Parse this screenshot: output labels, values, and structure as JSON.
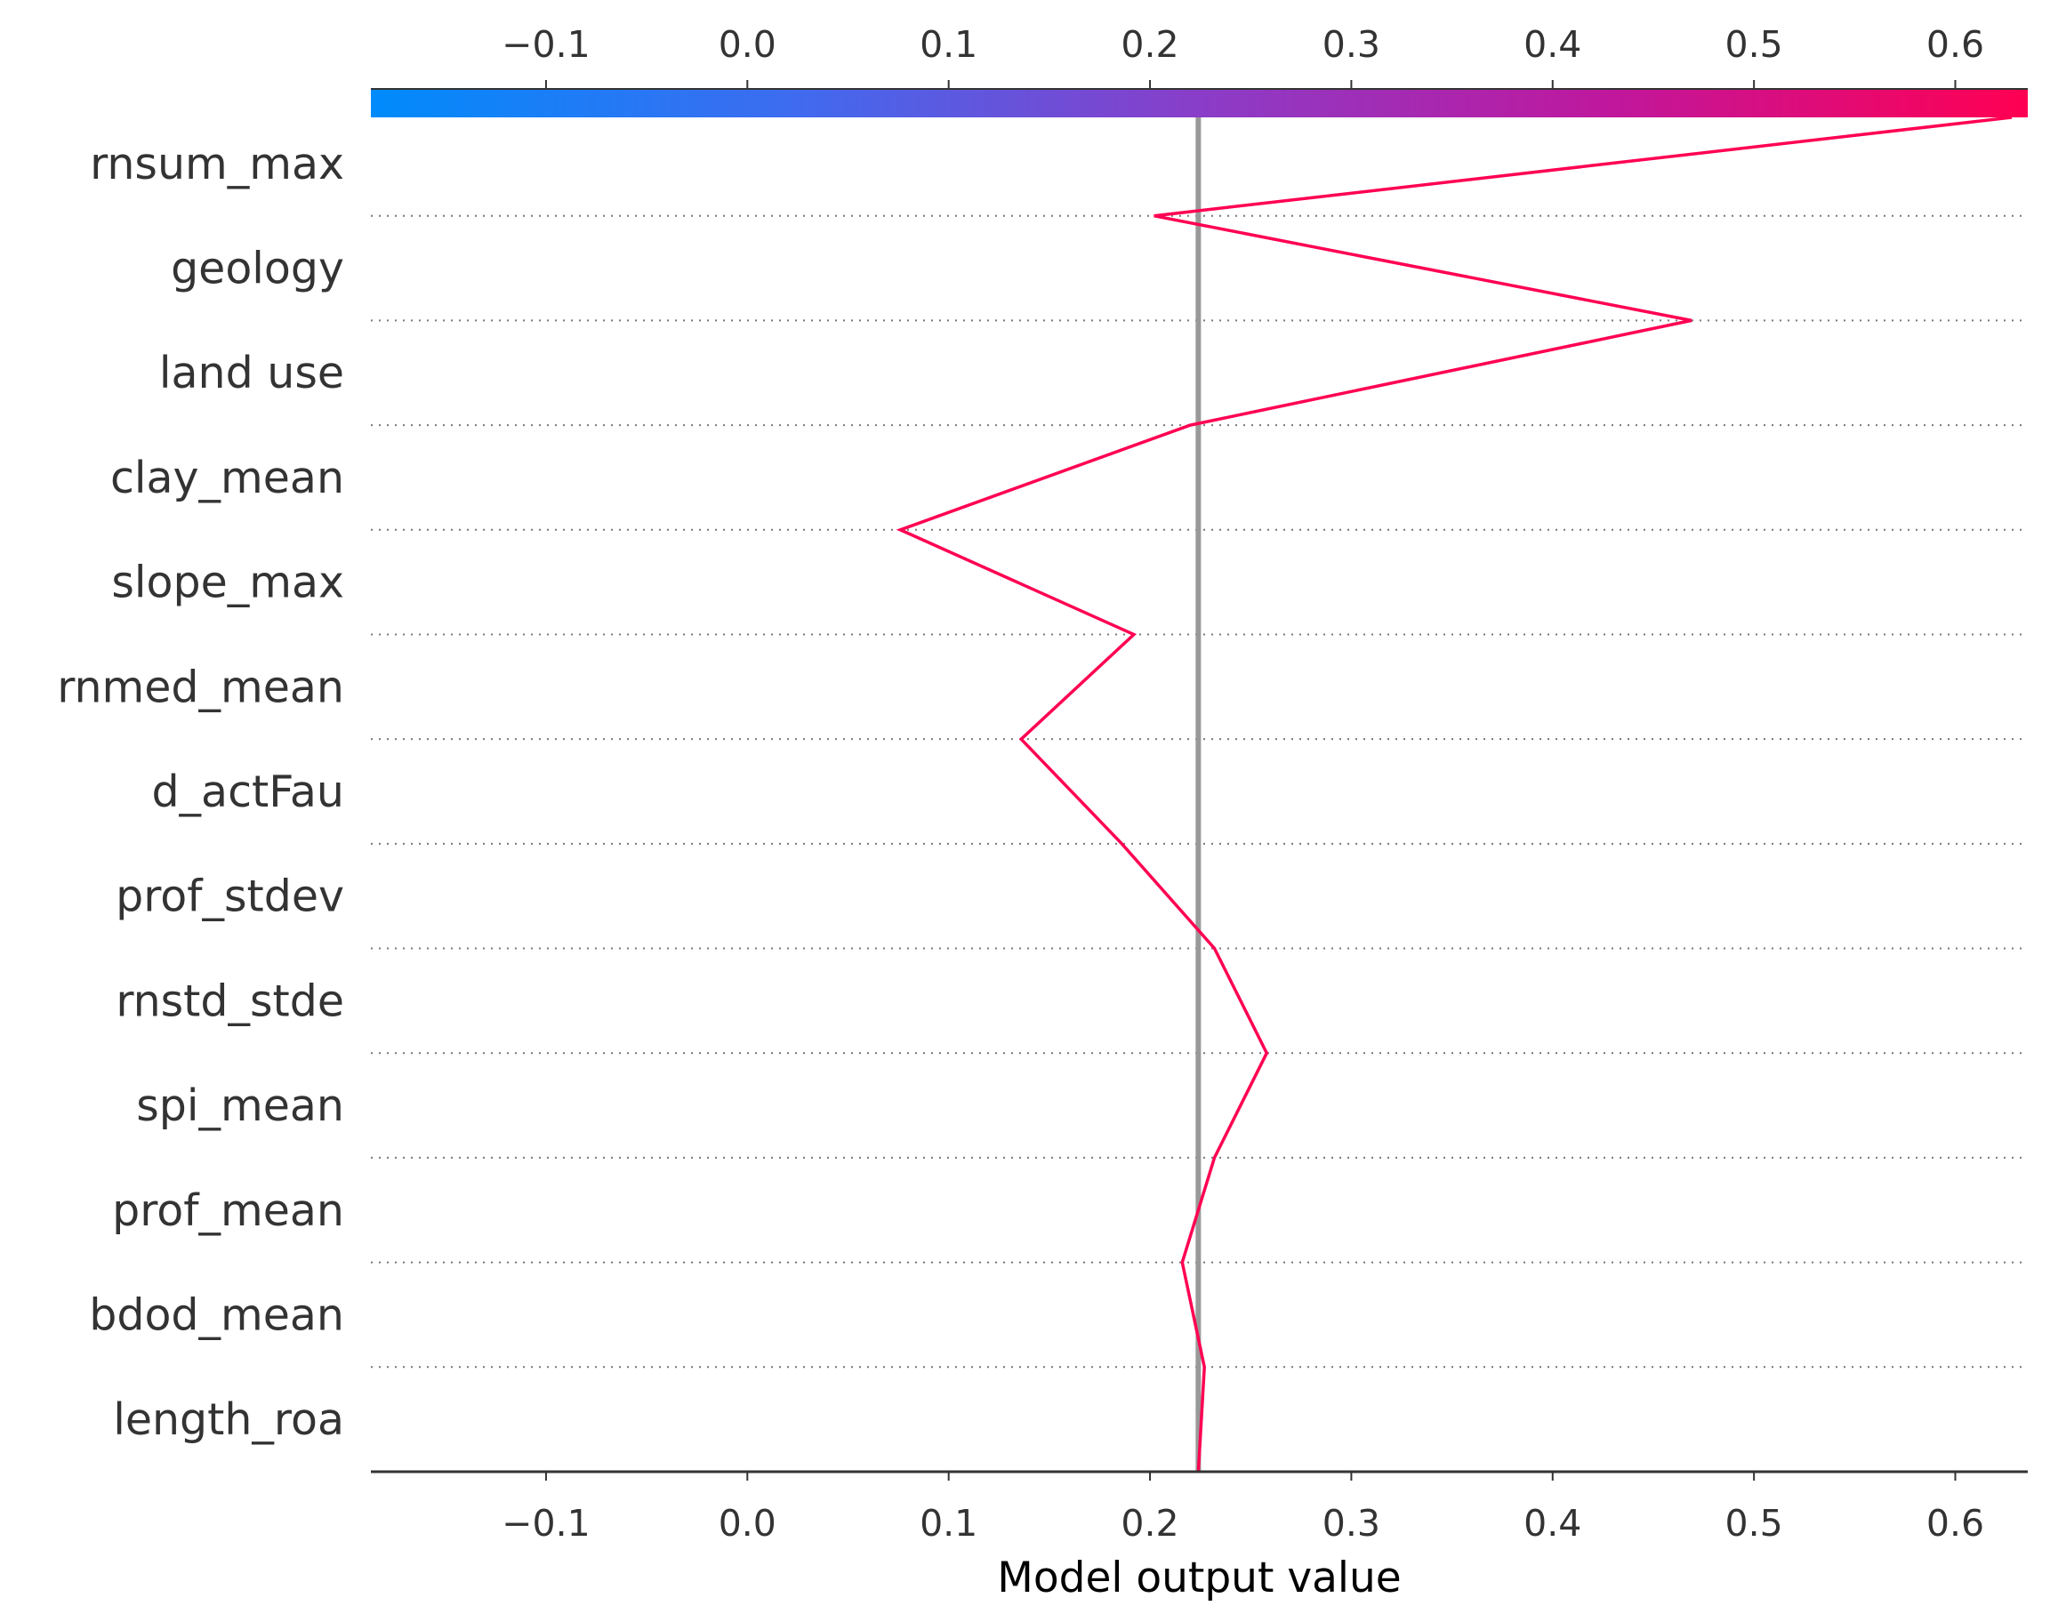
{
  "chart_data": {
    "type": "line",
    "subtype": "decision-plot",
    "xlabel": "Model output value",
    "xlim": [
      -0.187,
      0.636
    ],
    "x_ticks": [
      -0.1,
      0.0,
      0.1,
      0.2,
      0.3,
      0.4,
      0.5,
      0.6
    ],
    "x_tick_labels": [
      "−0.1",
      "0.0",
      "0.1",
      "0.2",
      "0.3",
      "0.4",
      "0.5",
      "0.6"
    ],
    "base_value": 0.224,
    "features": [
      "rnsum_max",
      "geology",
      "land use",
      "clay_mean",
      "slope_max",
      "rnmed_mean",
      "d_actFau",
      "prof_stdev",
      "rnstd_stde",
      "spi_mean",
      "prof_mean",
      "bdod_mean",
      "length_roa"
    ],
    "path_x": [
      0.628,
      0.202,
      0.469,
      0.22,
      0.076,
      0.192,
      0.136,
      0.186,
      0.232,
      0.258,
      0.232,
      0.216,
      0.227,
      0.224
    ],
    "colorbar": {
      "colors": [
        "#008bfb",
        "#3d6cf0",
        "#8a3dc8",
        "#c0179c",
        "#ff0052"
      ],
      "range": [
        -0.187,
        0.636
      ]
    },
    "colors": {
      "line": "#ff0052",
      "base_line": "#999999",
      "grid": "#777777",
      "text": "#333333"
    },
    "grid": "dotted horizontal"
  }
}
